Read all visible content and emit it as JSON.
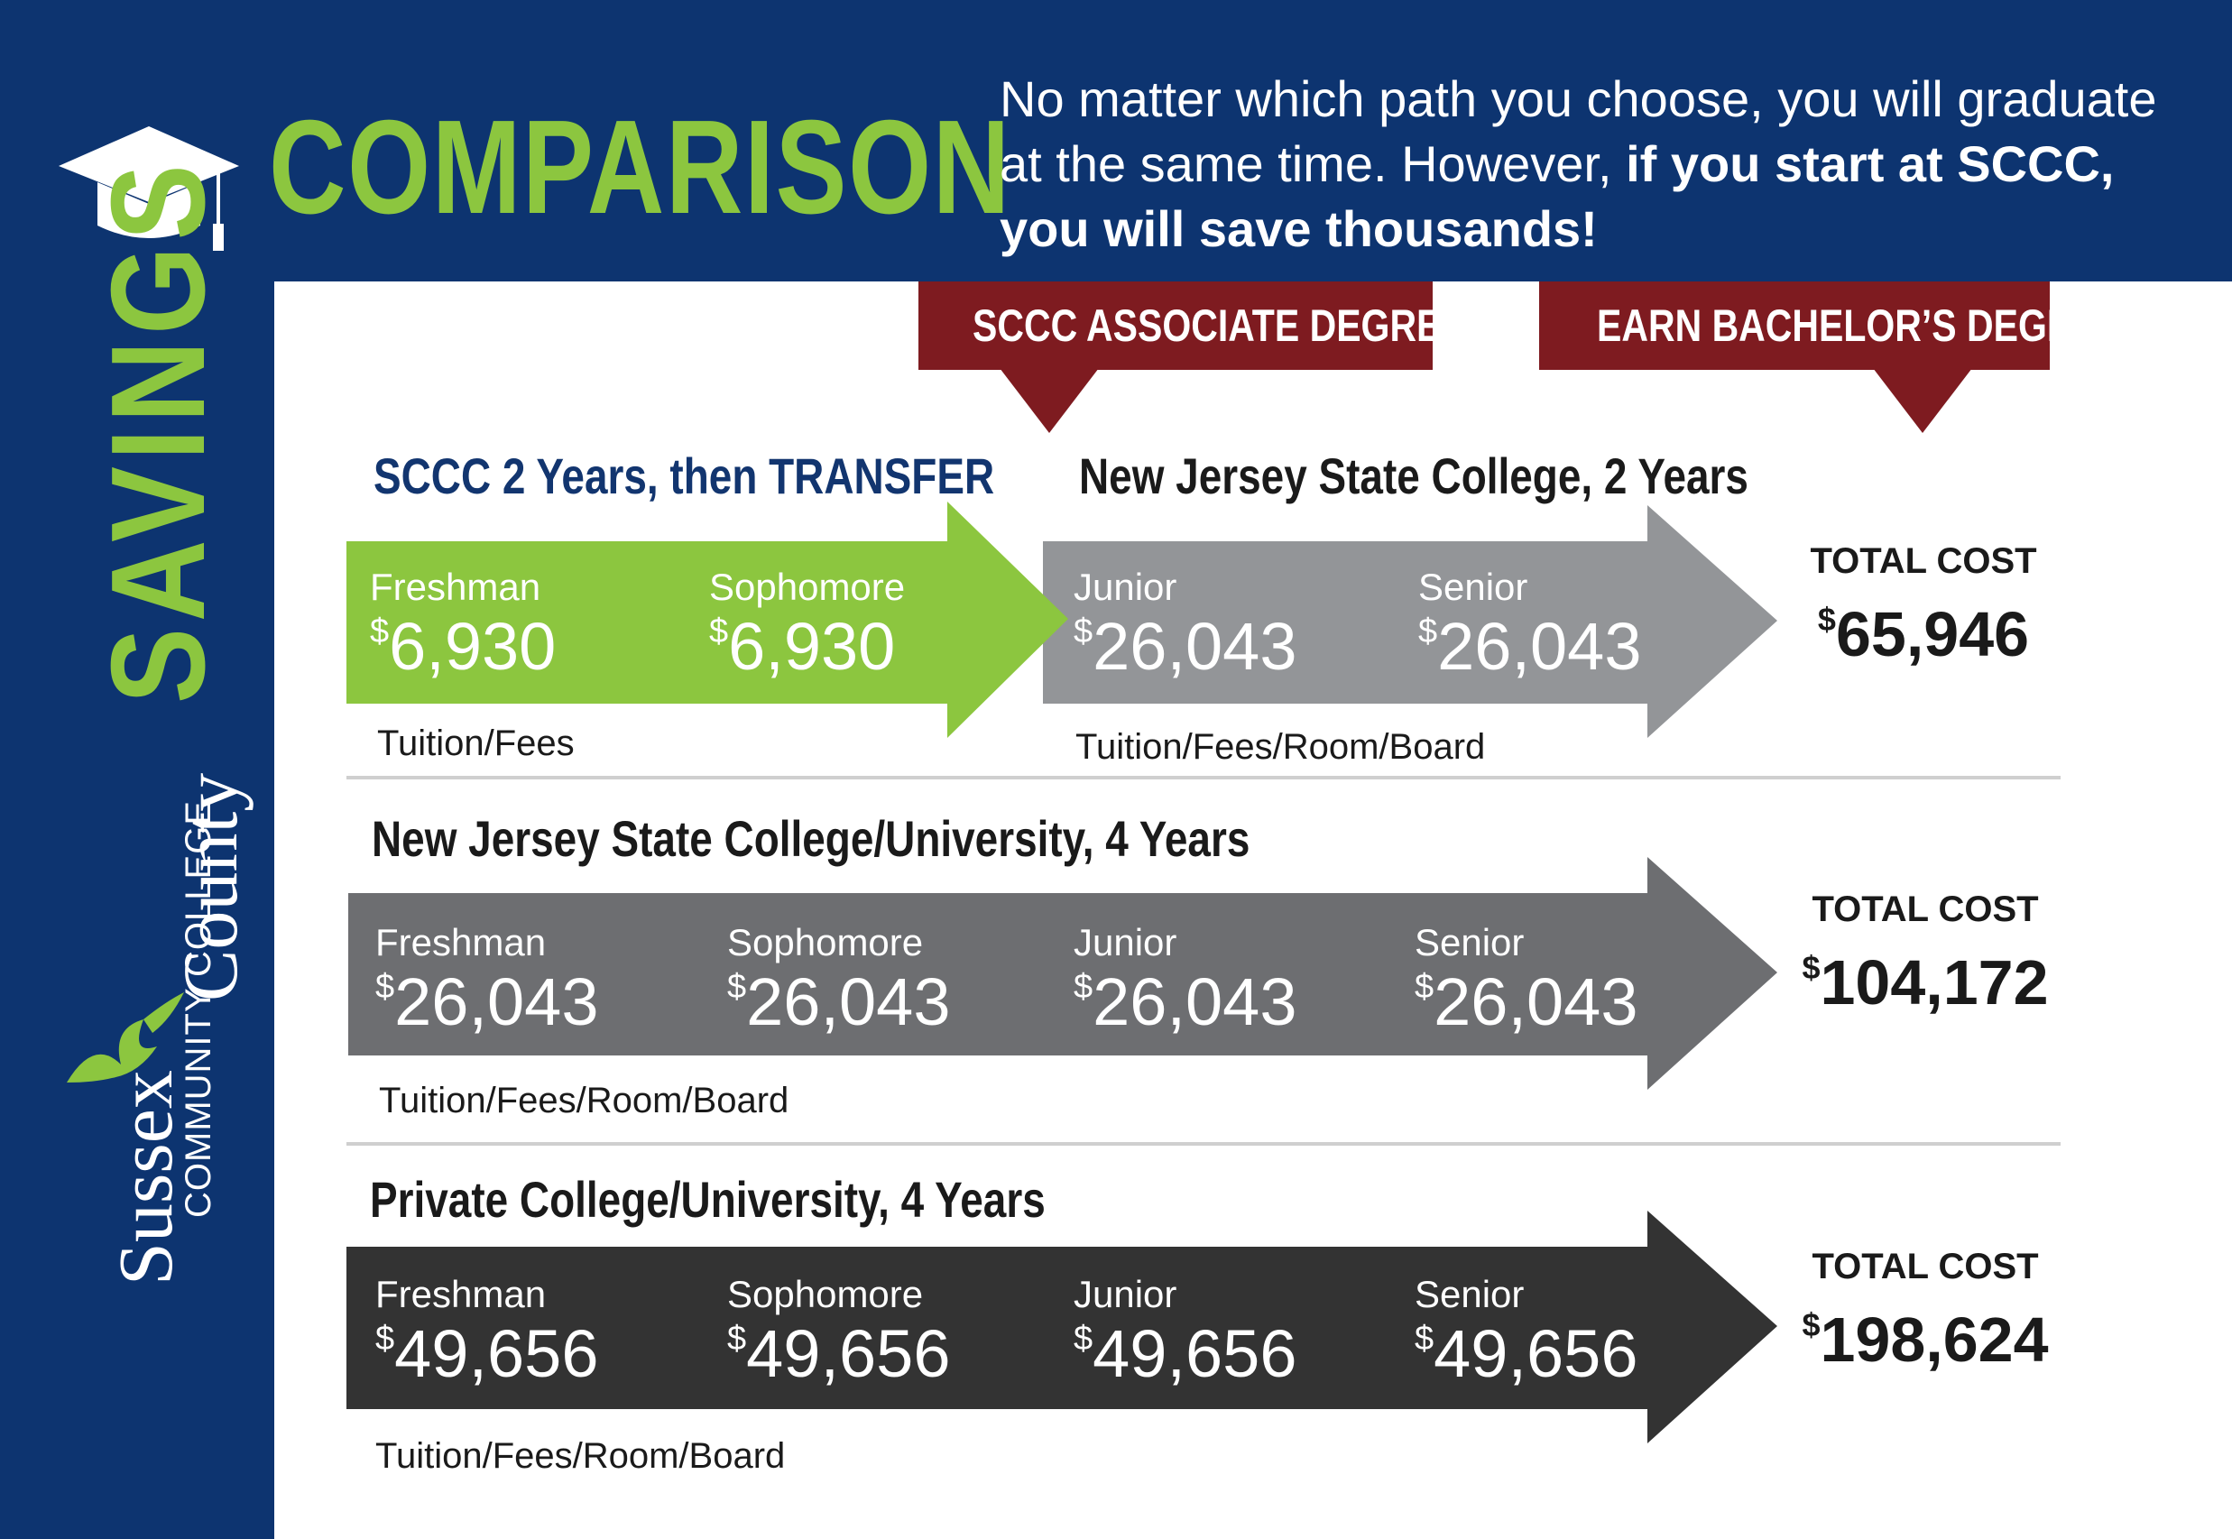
{
  "header": {
    "title": "COMPARISON",
    "tagline_regular": "No matter which path you choose, you will graduate at the same time. However, ",
    "tagline_bold": "if you start at SCCC, you will save thousands!"
  },
  "sidebar": {
    "savings": "SAVINGS",
    "logo": {
      "sussex": "Sussex",
      "county": "County",
      "community_college": "COMMUNITY COLLEGE"
    }
  },
  "degree_tabs": {
    "associate": "SCCC ASSOCIATE DEGREE",
    "bachelor": "EARN BACHELOR’S DEGREE"
  },
  "colors": {
    "navy": "#0d3470",
    "green": "#8cc63f",
    "maroon": "#7e1b20",
    "light_gray": "#939598",
    "mid_gray": "#6d6e71",
    "dark_gray": "#333333"
  },
  "rows": [
    {
      "title_left": "SCCC 2 Years, then TRANSFER",
      "title_right": "New Jersey State College, 2 Years",
      "years": [
        {
          "label": "Freshman",
          "currency": "$",
          "amount": "6,930"
        },
        {
          "label": "Sophomore",
          "currency": "$",
          "amount": "6,930"
        },
        {
          "label": "Junior",
          "currency": "$",
          "amount": "26,043"
        },
        {
          "label": "Senior",
          "currency": "$",
          "amount": "26,043"
        }
      ],
      "cost_note_left": "Tuition/Fees",
      "cost_note_right": "Tuition/Fees/Room/Board",
      "total_label": "TOTAL COST",
      "total_currency": "$",
      "total_amount": "65,946"
    },
    {
      "title": "New Jersey State College/University, 4 Years",
      "years": [
        {
          "label": "Freshman",
          "currency": "$",
          "amount": "26,043"
        },
        {
          "label": "Sophomore",
          "currency": "$",
          "amount": "26,043"
        },
        {
          "label": "Junior",
          "currency": "$",
          "amount": "26,043"
        },
        {
          "label": "Senior",
          "currency": "$",
          "amount": "26,043"
        }
      ],
      "cost_note": "Tuition/Fees/Room/Board",
      "total_label": "TOTAL COST",
      "total_currency": "$",
      "total_amount": "104,172"
    },
    {
      "title": "Private College/University, 4 Years",
      "years": [
        {
          "label": "Freshman",
          "currency": "$",
          "amount": "49,656"
        },
        {
          "label": "Sophomore",
          "currency": "$",
          "amount": "49,656"
        },
        {
          "label": "Junior",
          "currency": "$",
          "amount": "49,656"
        },
        {
          "label": "Senior",
          "currency": "$",
          "amount": "49,656"
        }
      ],
      "cost_note": "Tuition/Fees/Room/Board",
      "total_label": "TOTAL COST",
      "total_currency": "$",
      "total_amount": "198,624"
    }
  ]
}
